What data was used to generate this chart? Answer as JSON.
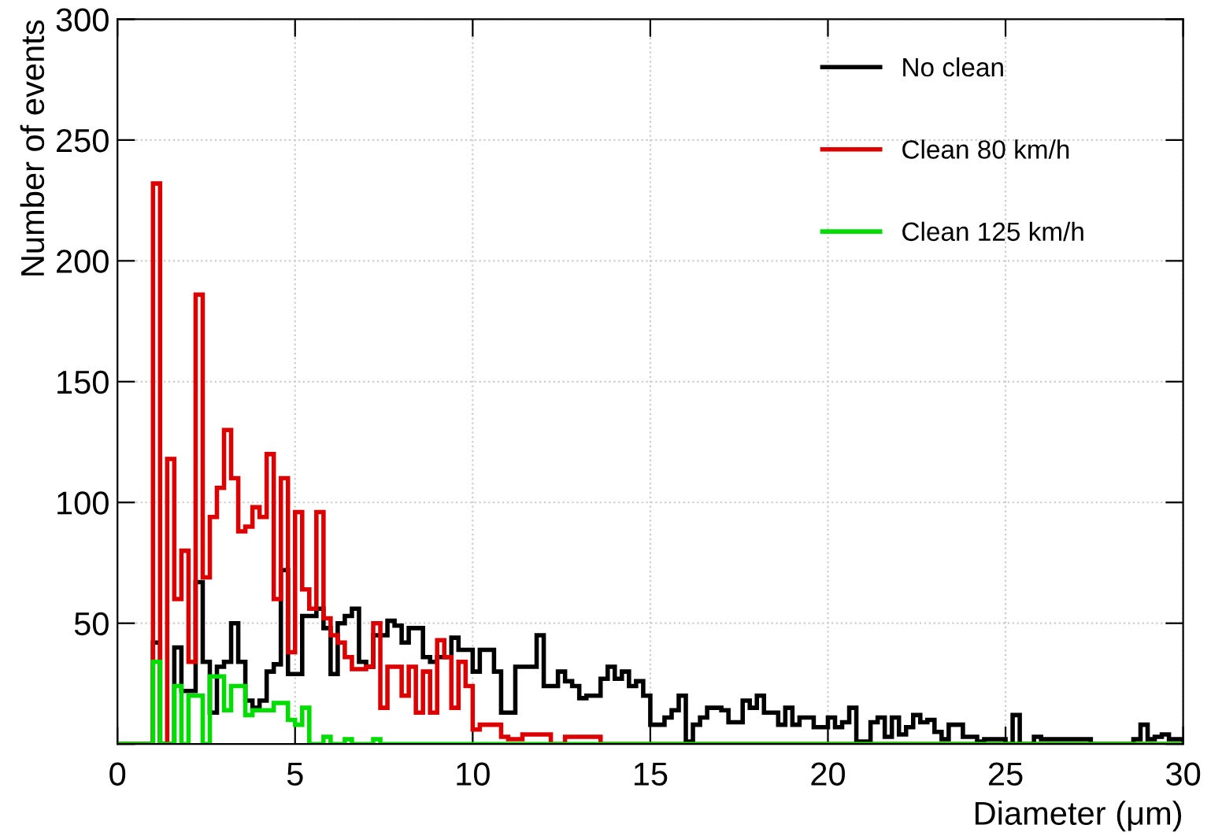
{
  "chart_data": {
    "type": "histogram",
    "xlabel": "Diameter (μm)",
    "ylabel": "Number of events",
    "bins": [
      0,
      0.2,
      0.4,
      0.6,
      0.8,
      1,
      1.2,
      1.4,
      1.6,
      1.8,
      2,
      2.2,
      2.4,
      2.6,
      2.8,
      3,
      3.2,
      3.4,
      3.6,
      3.8,
      4,
      4.2,
      4.4,
      4.6,
      4.8,
      5,
      5.2,
      5.4,
      5.6,
      5.8,
      6,
      6.2,
      6.4,
      6.6,
      6.8,
      7,
      7.2,
      7.4,
      7.6,
      7.8,
      8,
      8.2,
      8.4,
      8.6,
      8.8,
      9,
      9.2,
      9.4,
      9.6,
      9.8,
      10,
      10.2,
      10.4,
      10.6,
      10.8,
      11,
      11.2,
      11.4,
      11.6,
      11.8,
      12,
      12.2,
      12.4,
      12.6,
      12.8,
      13,
      13.2,
      13.4,
      13.6,
      13.8,
      14,
      14.2,
      14.4,
      14.6,
      14.8,
      15,
      15.2,
      15.4,
      15.6,
      15.8,
      16,
      16.2,
      16.4,
      16.6,
      16.8,
      17,
      17.2,
      17.4,
      17.6,
      17.8,
      18,
      18.2,
      18.4,
      18.6,
      18.8,
      19,
      19.2,
      19.4,
      19.6,
      19.8,
      20,
      20.2,
      20.4,
      20.6,
      20.8,
      21,
      21.2,
      21.4,
      21.6,
      21.8,
      22,
      22.2,
      22.4,
      22.6,
      22.8,
      23,
      23.2,
      23.4,
      23.6,
      23.8,
      24,
      24.2,
      24.4,
      24.6,
      24.8,
      25,
      25.2,
      25.4,
      25.6,
      25.8,
      26,
      26.2,
      26.4,
      26.6,
      26.8,
      27,
      27.2,
      27.4,
      27.6,
      27.8,
      28,
      28.2,
      28.4,
      28.6,
      28.8,
      29,
      29.2,
      29.4,
      29.6,
      29.8,
      30
    ],
    "series": [
      {
        "name": "No clean",
        "color": "#000000",
        "values": [
          0,
          0,
          0,
          0,
          0,
          42,
          0,
          0,
          40,
          22,
          22,
          67,
          34,
          13,
          32,
          34,
          50,
          34,
          18,
          15,
          18,
          30,
          33,
          72,
          29,
          29,
          53,
          53,
          56,
          48,
          29,
          50,
          53,
          56,
          34,
          32,
          45,
          45,
          51,
          49,
          42,
          48,
          48,
          36,
          34,
          36,
          36,
          44,
          39,
          39,
          30,
          39,
          39,
          30,
          13,
          13,
          32,
          32,
          32,
          45,
          24,
          24,
          30,
          26,
          24,
          19,
          20,
          20,
          27,
          32,
          27,
          30,
          24,
          26,
          20,
          8,
          8,
          11,
          14,
          20,
          1,
          8,
          11,
          15,
          15,
          14,
          9,
          9,
          18,
          15,
          20,
          13,
          13,
          8,
          15,
          8,
          11,
          11,
          7,
          7,
          11,
          7,
          9,
          15,
          1,
          1,
          9,
          11,
          3,
          11,
          4,
          7,
          12,
          9,
          10,
          5,
          2,
          8,
          8,
          3,
          3,
          1,
          2,
          2,
          2,
          0,
          12,
          0,
          0,
          3,
          2,
          2,
          2,
          2,
          2,
          2,
          2,
          0,
          0,
          0,
          0,
          0,
          0,
          2,
          8,
          2,
          3,
          4,
          2,
          2
        ]
      },
      {
        "name": "Clean 80 km/h",
        "color": "#dd0000",
        "values": [
          0,
          0,
          0,
          0,
          0,
          232,
          0,
          118,
          60,
          80,
          34,
          186,
          69,
          94,
          106,
          130,
          110,
          88,
          90,
          98,
          94,
          120,
          60,
          110,
          38,
          96,
          64,
          56,
          96,
          52,
          45,
          42,
          36,
          31,
          31,
          32,
          50,
          15,
          32,
          32,
          20,
          32,
          13,
          30,
          13,
          43,
          36,
          15,
          34,
          24,
          6,
          8,
          8,
          8,
          3,
          2,
          2,
          4,
          4,
          4,
          4,
          0,
          0,
          3,
          3,
          3,
          3,
          3,
          0,
          0,
          0,
          0,
          0,
          0,
          0,
          0,
          0,
          0,
          0,
          0,
          0,
          0,
          0,
          0,
          0,
          0,
          0,
          0,
          0,
          0,
          0,
          0,
          0,
          0,
          0,
          0,
          0,
          0,
          0,
          0,
          0,
          0,
          0,
          0,
          0,
          0,
          0,
          0,
          0,
          0,
          0,
          0,
          0,
          0,
          0,
          0,
          0,
          0,
          0,
          0,
          0,
          0,
          0,
          0,
          0,
          0,
          0,
          0,
          0,
          0,
          0,
          0,
          0,
          0,
          0,
          0,
          0,
          0,
          0,
          0,
          0,
          0,
          0,
          0,
          0,
          0,
          0,
          0,
          0,
          0
        ]
      },
      {
        "name": "Clean 125 km/h",
        "color": "#00dd00",
        "values": [
          0,
          0,
          0,
          0,
          0,
          34,
          0,
          0,
          24,
          0,
          20,
          20,
          0,
          28,
          28,
          14,
          24,
          24,
          12,
          14,
          14,
          14,
          17,
          17,
          10,
          8,
          15,
          0,
          0,
          3,
          0,
          0,
          2,
          0,
          0,
          0,
          2,
          0,
          0,
          0,
          0,
          0,
          0,
          0,
          0,
          0,
          0,
          0,
          0,
          0,
          0,
          0,
          0,
          0,
          0,
          0,
          0,
          0,
          0,
          0,
          0,
          0,
          0,
          0,
          0,
          0,
          0,
          0,
          0,
          0,
          0,
          0,
          0,
          0,
          0,
          0,
          0,
          0,
          0,
          0,
          0,
          0,
          0,
          0,
          0,
          0,
          0,
          0,
          0,
          0,
          0,
          0,
          0,
          0,
          0,
          0,
          0,
          0,
          0,
          0,
          0,
          0,
          0,
          0,
          0,
          0,
          0,
          0,
          0,
          0,
          0,
          0,
          0,
          0,
          0,
          0,
          0,
          0,
          0,
          0,
          0,
          0,
          0,
          0,
          0,
          0,
          0,
          0,
          0,
          0,
          0,
          0,
          0,
          0,
          0,
          0,
          0,
          0,
          0,
          0,
          0,
          0,
          0,
          0,
          0,
          0,
          0,
          0,
          0,
          0
        ]
      }
    ],
    "xlim": [
      0,
      30
    ],
    "ylim": [
      0,
      300
    ],
    "xticks": [
      0,
      5,
      10,
      15,
      20,
      25,
      30
    ],
    "yticks": [
      {
        "value": 0,
        "label": null
      },
      50,
      100,
      150,
      200,
      250,
      300
    ],
    "grid": true,
    "legend": "top right"
  }
}
